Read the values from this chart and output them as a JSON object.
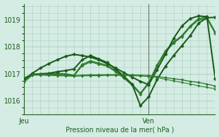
{
  "bg_color": "#d4ece4",
  "grid_color": "#aaccbb",
  "line_color_dark": "#1a5c1a",
  "line_color_mid": "#2d7a2d",
  "xlabel": "Pression niveau de la mer( hPa )",
  "yticks": [
    1016,
    1017,
    1018,
    1019
  ],
  "xlabels_text": [
    "Jeu",
    "Ven"
  ],
  "ylim": [
    1015.5,
    1019.6
  ],
  "xlim": [
    0,
    23
  ],
  "vline_x": 15,
  "vline_color": "#607060",
  "figsize": [
    3.2,
    2.0
  ],
  "dpi": 100,
  "series": [
    {
      "x": [
        0,
        1,
        2,
        3,
        4,
        5,
        6,
        7,
        8,
        9,
        10,
        11,
        12,
        13,
        14,
        15,
        16,
        17,
        18,
        19,
        20,
        21,
        22,
        23
      ],
      "y": [
        1016.85,
        1016.98,
        1017.0,
        1017.0,
        1017.02,
        1017.0,
        1016.95,
        1017.35,
        1017.48,
        1017.4,
        1017.32,
        1017.12,
        1016.88,
        1016.62,
        1016.28,
        1016.68,
        1017.32,
        1017.85,
        1018.18,
        1018.42,
        1018.78,
        1019.05,
        1019.1,
        1018.55
      ],
      "color": "#2d7a2d",
      "lw": 1.2,
      "marker": "D",
      "ms": 2.2
    },
    {
      "x": [
        0,
        1,
        2,
        3,
        4,
        5,
        6,
        7,
        8,
        9,
        10,
        11,
        12,
        13,
        14,
        15,
        16,
        17,
        18,
        19,
        20,
        21,
        22,
        23
      ],
      "y": [
        1016.82,
        1016.96,
        1016.98,
        1016.97,
        1016.98,
        1016.96,
        1016.92,
        1017.3,
        1017.44,
        1017.36,
        1017.28,
        1017.08,
        1016.84,
        1016.58,
        1016.24,
        1016.64,
        1017.28,
        1017.8,
        1018.14,
        1018.38,
        1018.74,
        1019.0,
        1019.05,
        1018.5
      ],
      "color": "#2d7a2d",
      "lw": 1.0,
      "marker": "D",
      "ms": 2.0
    },
    {
      "x": [
        0,
        1,
        2,
        3,
        4,
        5,
        6,
        7,
        8,
        9,
        10,
        11,
        12,
        13,
        14,
        15,
        16,
        17,
        18,
        19,
        20,
        21,
        22,
        23
      ],
      "y": [
        1016.78,
        1016.98,
        1017.0,
        1017.02,
        1017.08,
        1017.12,
        1017.18,
        1017.52,
        1017.68,
        1017.55,
        1017.42,
        1017.18,
        1016.92,
        1016.62,
        1015.82,
        1016.15,
        1016.78,
        1017.28,
        1017.68,
        1018.05,
        1018.42,
        1018.88,
        1019.08,
        1019.1
      ],
      "color": "#1a5c1a",
      "lw": 1.5,
      "marker": "D",
      "ms": 2.5
    },
    {
      "x": [
        0,
        1,
        2,
        3,
        4,
        5,
        6,
        7,
        8,
        9,
        10,
        11,
        12,
        13,
        14,
        15,
        16,
        17,
        18,
        19,
        20,
        21,
        22,
        23
      ],
      "y": [
        1016.78,
        1017.02,
        1017.22,
        1017.38,
        1017.52,
        1017.65,
        1017.72,
        1017.68,
        1017.62,
        1017.52,
        1017.38,
        1017.22,
        1017.05,
        1016.88,
        1016.72,
        1016.6,
        1017.15,
        1017.72,
        1018.32,
        1018.78,
        1019.05,
        1019.15,
        1019.12,
        1016.82
      ],
      "color": "#1a5c1a",
      "lw": 1.5,
      "marker": "D",
      "ms": 2.5
    },
    {
      "x": [
        0,
        1,
        2,
        3,
        4,
        5,
        6,
        7,
        8,
        9,
        10,
        11,
        12,
        13,
        14,
        15,
        16,
        17,
        18,
        19,
        20,
        21,
        22,
        23
      ],
      "y": [
        1016.72,
        1016.98,
        1016.98,
        1016.97,
        1016.96,
        1016.95,
        1016.94,
        1016.95,
        1016.96,
        1016.96,
        1016.97,
        1016.97,
        1016.97,
        1016.96,
        1016.95,
        1016.94,
        1016.9,
        1016.86,
        1016.82,
        1016.78,
        1016.72,
        1016.68,
        1016.62,
        1016.55
      ],
      "color": "#2d7a2d",
      "lw": 1.0,
      "marker": "D",
      "ms": 2.0
    },
    {
      "x": [
        0,
        1,
        2,
        3,
        4,
        5,
        6,
        7,
        8,
        9,
        10,
        11,
        12,
        13,
        14,
        15,
        16,
        17,
        18,
        19,
        20,
        21,
        22,
        23
      ],
      "y": [
        1016.68,
        1016.95,
        1016.95,
        1016.94,
        1016.93,
        1016.92,
        1016.91,
        1016.92,
        1016.93,
        1016.93,
        1016.94,
        1016.94,
        1016.94,
        1016.93,
        1016.92,
        1016.9,
        1016.86,
        1016.8,
        1016.74,
        1016.68,
        1016.62,
        1016.56,
        1016.5,
        1016.44
      ],
      "color": "#2d7a2d",
      "lw": 0.8,
      "marker": "D",
      "ms": 1.8
    }
  ]
}
